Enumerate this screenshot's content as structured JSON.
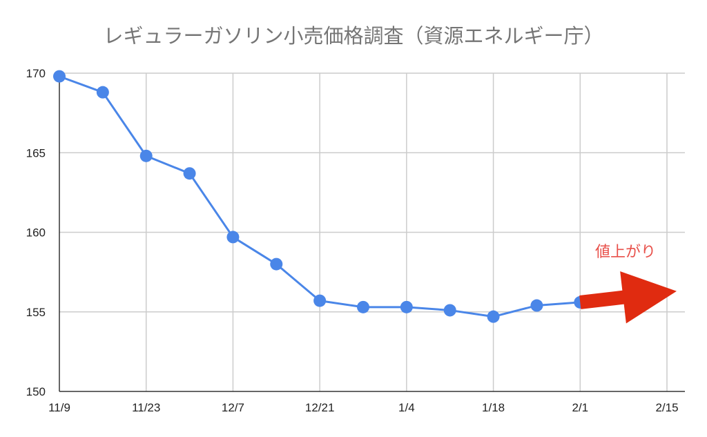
{
  "chart_data": {
    "type": "line",
    "title": "レギュラーガソリン小売価格調査（資源エネルギー庁）",
    "xlabel": "",
    "ylabel": "",
    "x_ticks": [
      "11/9",
      "11/23",
      "12/7",
      "12/21",
      "1/4",
      "1/18",
      "2/1",
      "2/15"
    ],
    "x_range": [
      "11/9",
      "2/15"
    ],
    "ylim": [
      150,
      170
    ],
    "y_ticks": [
      150,
      155,
      160,
      165,
      170
    ],
    "grid": true,
    "legend": "none",
    "series": [
      {
        "color": "#4a86e8",
        "points": [
          {
            "x": "11/9",
            "y": 169.8
          },
          {
            "x": "11/16",
            "y": 168.8
          },
          {
            "x": "11/23",
            "y": 164.8
          },
          {
            "x": "11/30",
            "y": 163.7
          },
          {
            "x": "12/7",
            "y": 159.7
          },
          {
            "x": "12/14",
            "y": 158.0
          },
          {
            "x": "12/21",
            "y": 155.7
          },
          {
            "x": "12/28",
            "y": 155.3
          },
          {
            "x": "1/4",
            "y": 155.3
          },
          {
            "x": "1/11",
            "y": 155.1
          },
          {
            "x": "1/18",
            "y": 154.7
          },
          {
            "x": "1/25",
            "y": 155.4
          },
          {
            "x": "2/1",
            "y": 155.6
          }
        ]
      }
    ],
    "annotations": [
      {
        "text": "値上がり",
        "color": "#e8504a",
        "arrow_color": "#e02b10",
        "arrow_from": {
          "x": "2/1",
          "y": 155.6
        },
        "arrow_to": {
          "x": "2/15",
          "y": 156.3
        }
      }
    ]
  }
}
